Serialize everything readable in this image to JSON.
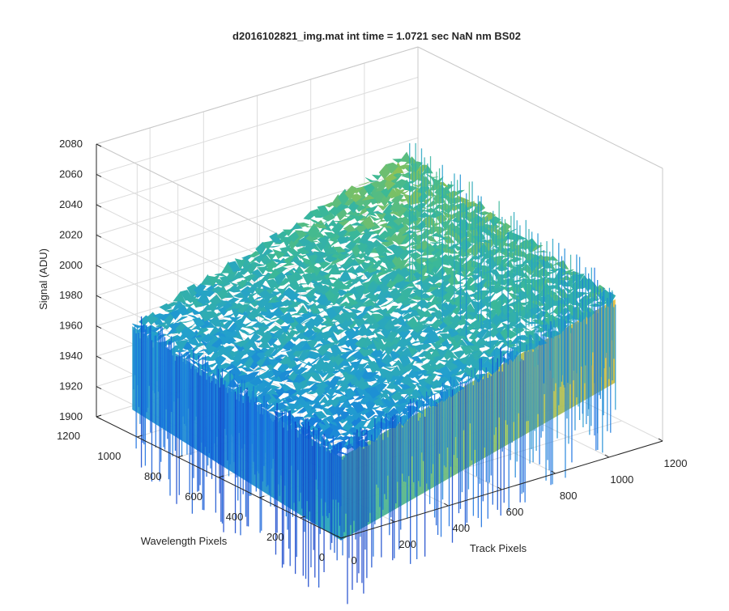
{
  "chart_data": {
    "type": "surface3d",
    "title": "d2016102821_img.mat int time = 1.0721 sec  NaN nm BS02",
    "xlabel": "Track Pixels",
    "ylabel": "Wavelength Pixels",
    "zlabel": "Signal (ADU)",
    "xlim": [
      0,
      1200
    ],
    "ylim": [
      0,
      1200
    ],
    "zlim": [
      1900,
      2080
    ],
    "x_ticks": [
      "0",
      "200",
      "400",
      "600",
      "800",
      "1000",
      "1200"
    ],
    "y_ticks": [
      "0",
      "200",
      "400",
      "600",
      "800",
      "1000",
      "1200"
    ],
    "z_ticks": [
      "1900",
      "1920",
      "1940",
      "1960",
      "1980",
      "2000",
      "2020",
      "2040",
      "2060",
      "2080"
    ],
    "surface": {
      "x_extent": [
        0,
        1024
      ],
      "y_extent": [
        0,
        1024
      ],
      "z_min_approx": 1880,
      "z_max_approx": 2085,
      "z_typical_range": [
        1940,
        2030
      ],
      "trend": "signal rises with track pixel; low (~1950) near track 0, high (~2030) near track 700-1000 at large wavelength pixels",
      "colormap": "parula"
    },
    "grid": true,
    "colors": {
      "axis": "#262626",
      "grid": "#dcdcdc",
      "surface_low": "#0d6fe0",
      "surface_mid": "#38b99e",
      "surface_high": "#f0c030"
    }
  }
}
